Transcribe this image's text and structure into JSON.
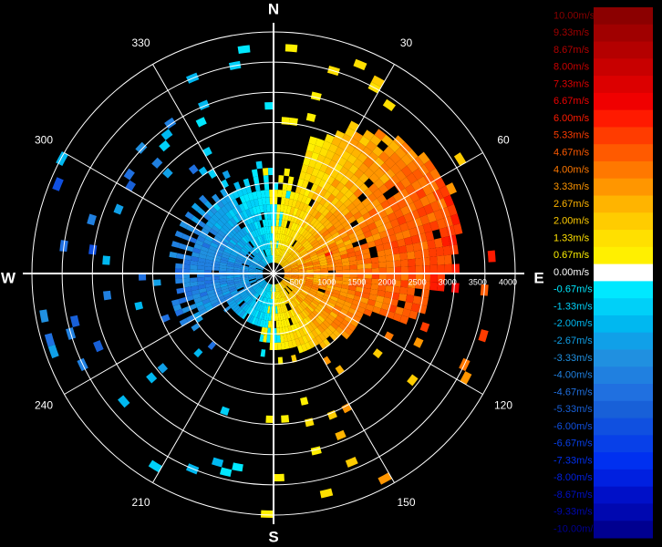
{
  "compass": {
    "north": "N",
    "south": "S",
    "east": "E",
    "west": "W"
  },
  "azimuth_labels": [
    "30",
    "60",
    "120",
    "150",
    "210",
    "240",
    "300",
    "330"
  ],
  "range_labels": [
    "500",
    "1000",
    "1500",
    "2000",
    "2500",
    "3000",
    "3500",
    "4000"
  ],
  "colorbar": {
    "labels": [
      "10.00m/s",
      "9.33m/s",
      "8.67m/s",
      "8.00m/s",
      "7.33m/s",
      "6.67m/s",
      "6.00m/s",
      "5.33m/s",
      "4.67m/s",
      "4.00m/s",
      "3.33m/s",
      "2.67m/s",
      "2.00m/s",
      "1.33m/s",
      "0.67m/s",
      "0.00m/s",
      "-0.67m/s",
      "-1.33m/s",
      "-2.00m/s",
      "-2.67m/s",
      "-3.33m/s",
      "-4.00m/s",
      "-4.67m/s",
      "-5.33m/s",
      "-6.00m/s",
      "-6.67m/s",
      "-7.33m/s",
      "-8.00m/s",
      "-8.67m/s",
      "-9.33m/s",
      "-10.00m/s"
    ],
    "colors": [
      "#8b0000",
      "#a00000",
      "#b40000",
      "#c80000",
      "#dc0000",
      "#f00000",
      "#ff1a00",
      "#ff3c00",
      "#ff5a00",
      "#ff7800",
      "#ff9600",
      "#ffb400",
      "#ffcc00",
      "#ffe000",
      "#fff000",
      "#ffffff",
      "#00e8ff",
      "#00d0f8",
      "#00b8f0",
      "#10a0e8",
      "#2090e0",
      "#2080e0",
      "#2070e0",
      "#1860d8",
      "#1050e0",
      "#0840e8",
      "#0030f0",
      "#0020e0",
      "#0010c8",
      "#0008b0",
      "#000090"
    ]
  }
}
